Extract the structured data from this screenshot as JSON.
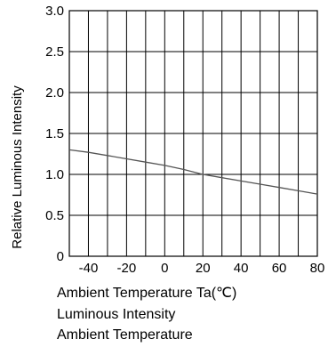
{
  "chart_data": {
    "type": "line",
    "title": "",
    "xlabel": "Ambient Temperature Ta(℃)",
    "ylabel": "Relative Luminous Intensity",
    "xlim": [
      -50,
      80
    ],
    "ylim": [
      0,
      3.0
    ],
    "x_ticks": [
      -40,
      -20,
      0,
      20,
      40,
      60,
      80
    ],
    "x_tick_labels": [
      "-40",
      "-20",
      "0",
      "20",
      "40",
      "60",
      "80"
    ],
    "y_ticks": [
      0,
      0.5,
      1.0,
      1.5,
      2.0,
      2.5,
      3.0
    ],
    "y_tick_labels": [
      "0",
      "0.5",
      "1.0",
      "1.5",
      "2.0",
      "2.5",
      "3.0"
    ],
    "grid": true,
    "series": [
      {
        "x": [
          -50,
          -40,
          -30,
          -20,
          -10,
          0,
          10,
          20,
          30,
          40,
          50,
          60,
          70,
          80
        ],
        "y": [
          1.3,
          1.27,
          1.23,
          1.19,
          1.15,
          1.11,
          1.06,
          1.0,
          0.96,
          0.92,
          0.88,
          0.84,
          0.8,
          0.76
        ]
      }
    ],
    "colors": {
      "axes": "#000000",
      "grid": "#000000",
      "line": "#555555"
    }
  },
  "captions": {
    "line1": "Ambient Temperature Ta(℃)",
    "line2": "Luminous Intensity",
    "line3": "Ambient Temperature"
  }
}
